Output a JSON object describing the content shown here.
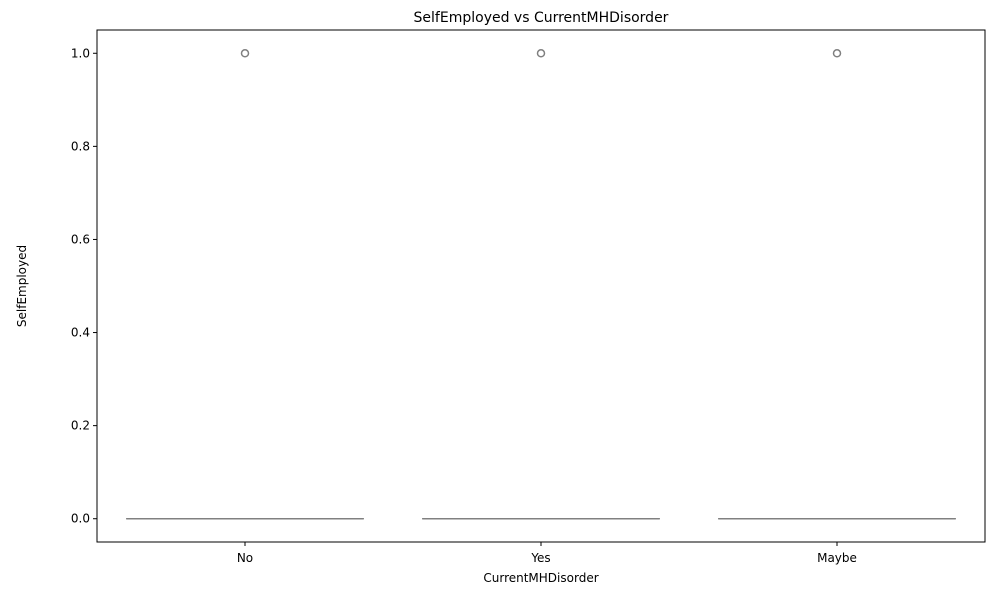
{
  "chart_data": {
    "type": "box",
    "title": "SelfEmployed vs CurrentMHDisorder",
    "xlabel": "CurrentMHDisorder",
    "ylabel": "SelfEmployed",
    "categories": [
      "No",
      "Yes",
      "Maybe"
    ],
    "ylim": [
      -0.05,
      1.05
    ],
    "yticks": [
      0.0,
      0.2,
      0.4,
      0.6,
      0.8,
      1.0
    ],
    "ytick_labels": [
      "0.0",
      "0.2",
      "0.4",
      "0.6",
      "0.8",
      "1.0"
    ],
    "boxes": [
      {
        "category": "No",
        "whisker_low": 0,
        "q1": 0,
        "median": 0,
        "q3": 0,
        "whisker_high": 0,
        "outliers": [
          1
        ]
      },
      {
        "category": "Yes",
        "whisker_low": 0,
        "q1": 0,
        "median": 0,
        "q3": 0,
        "whisker_high": 0,
        "outliers": [
          1
        ]
      },
      {
        "category": "Maybe",
        "whisker_low": 0,
        "q1": 0,
        "median": 0,
        "q3": 0,
        "whisker_high": 0,
        "outliers": [
          1
        ]
      }
    ],
    "grid": false,
    "legend": "none",
    "colors": {
      "box_line": "#808080",
      "outlier": "#808080",
      "axis": "#000000"
    }
  }
}
